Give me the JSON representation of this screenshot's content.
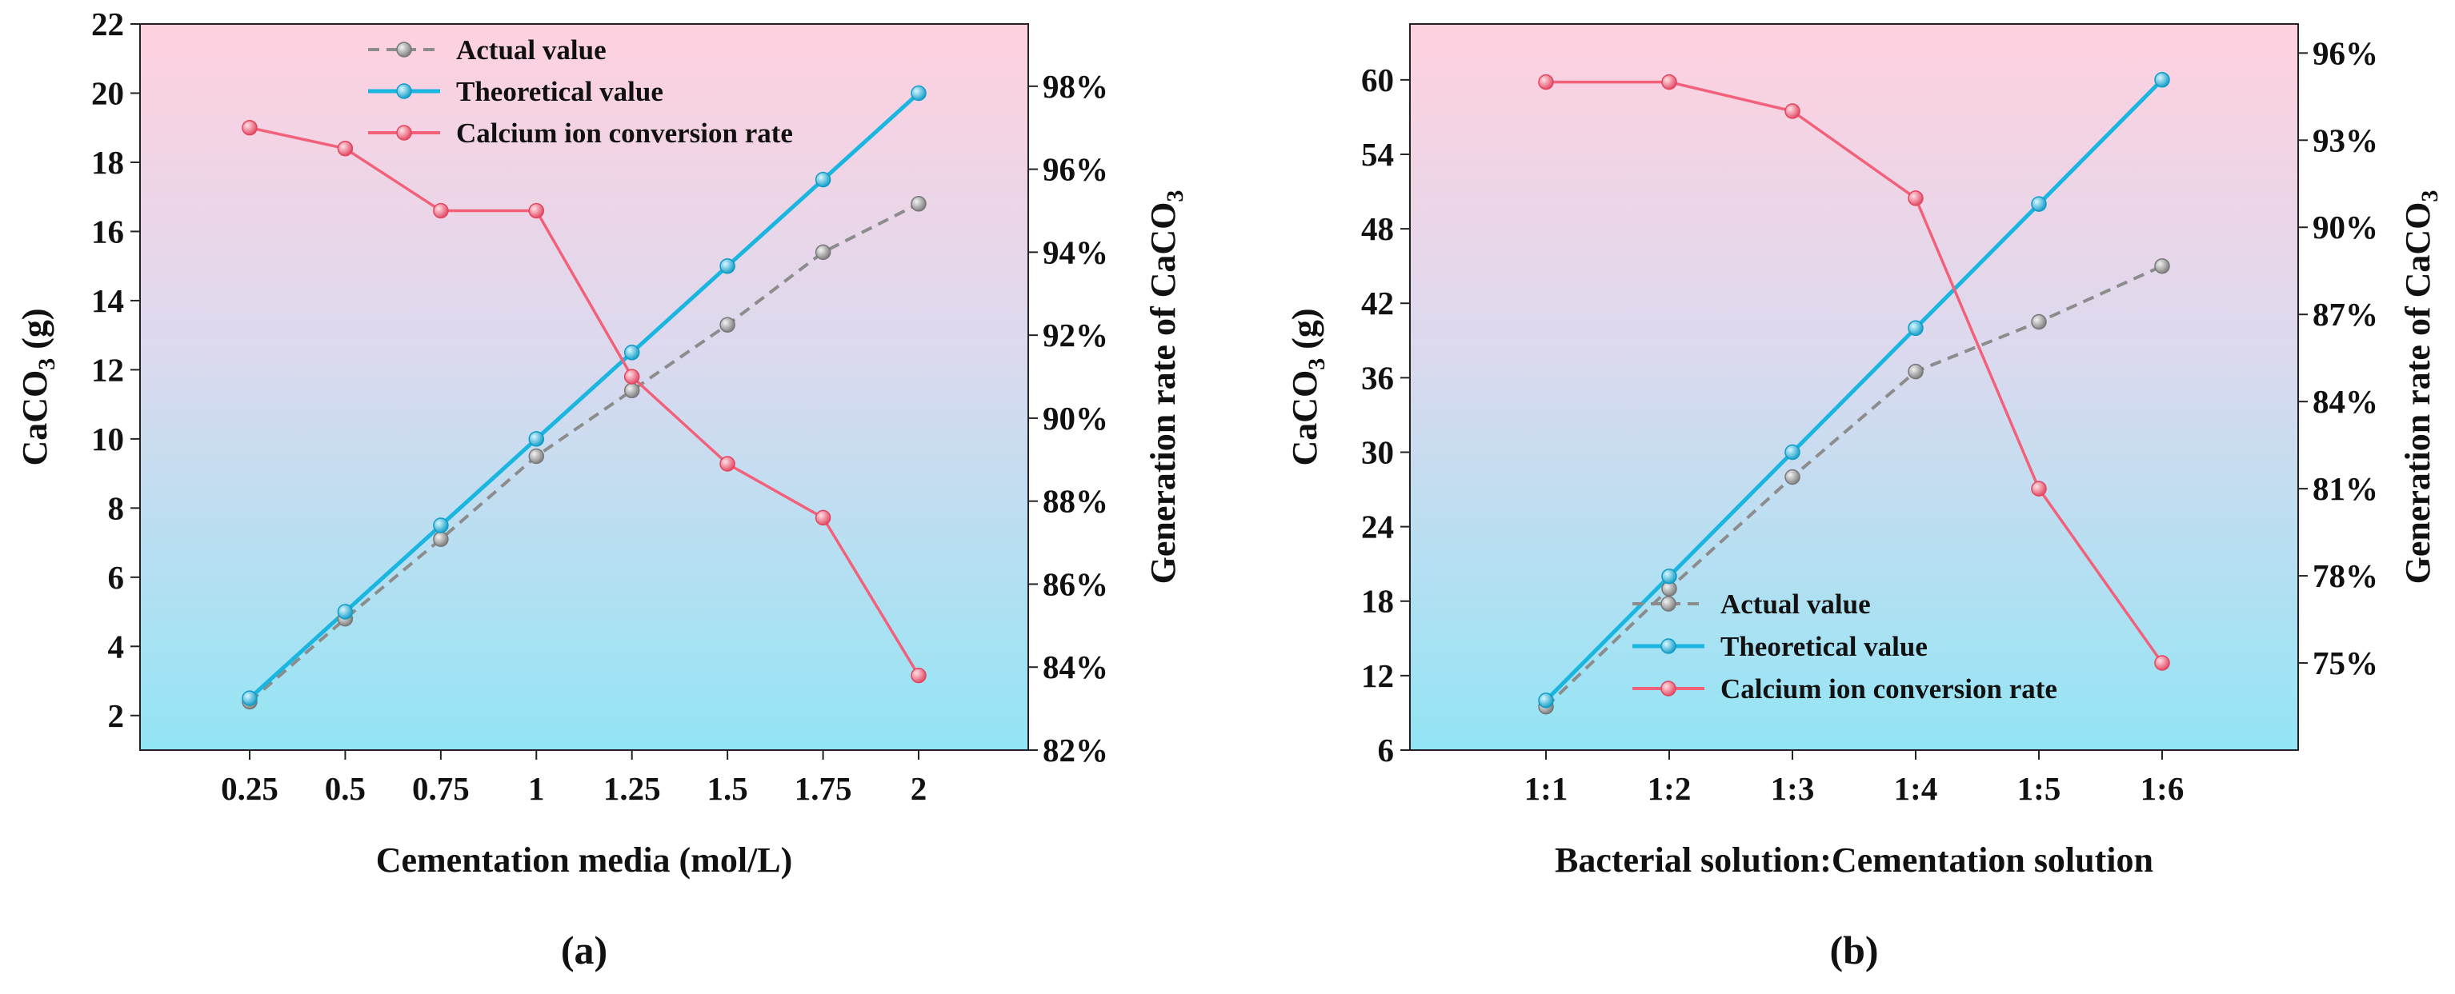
{
  "chart_data": [
    {
      "panel_label": "(a)",
      "type": "line",
      "categories": [
        "0.25",
        "0.5",
        "0.75",
        "1",
        "1.25",
        "1.5",
        "1.75",
        "2"
      ],
      "xlabel": "Cementation media (mol/L)",
      "ylabel_main": "CaCO",
      "ylabel_sub": "3",
      "ylabel_tail": " (g)",
      "y2label_main": "Generation rate of CaCO",
      "y2label_sub": "3",
      "ylim": [
        1,
        22
      ],
      "yticks": [
        2,
        4,
        6,
        8,
        10,
        12,
        14,
        16,
        18,
        20,
        22
      ],
      "y2lim": [
        82,
        99.5
      ],
      "y2ticks": [
        82,
        84,
        86,
        88,
        90,
        92,
        94,
        96,
        98
      ],
      "y2tick_labels": [
        "82%",
        "84%",
        "86%",
        "88%",
        "90%",
        "92%",
        "94%",
        "96%",
        "98%"
      ],
      "legend_position": "top-center",
      "series": [
        {
          "name": "Actual value",
          "axis": "left",
          "color": "#8c8c8c",
          "style": "dashed",
          "values": [
            2.4,
            4.8,
            7.1,
            9.5,
            11.4,
            13.3,
            15.4,
            16.8
          ]
        },
        {
          "name": "Theoretical value",
          "axis": "left",
          "color": "#1ab6e0",
          "style": "solid",
          "values": [
            2.5,
            5.0,
            7.5,
            10.0,
            12.5,
            15.0,
            17.5,
            20.0
          ]
        },
        {
          "name": "Calcium ion conversion rate",
          "axis": "right",
          "color": "#f2607a",
          "style": "solid",
          "values": [
            97.0,
            96.5,
            95.0,
            95.0,
            91.0,
            88.9,
            87.6,
            83.8
          ]
        }
      ]
    },
    {
      "panel_label": "(b)",
      "type": "line",
      "categories": [
        "1:1",
        "1:2",
        "1:3",
        "1:4",
        "1:5",
        "1:6"
      ],
      "xlabel": "Bacterial solution:Cementation solution",
      "ylabel_main": "CaCO",
      "ylabel_sub": "3",
      "ylabel_tail": " (g)",
      "y2label_main": "Generation rate of CaCO",
      "y2label_sub": "3",
      "ylim": [
        6,
        64.5
      ],
      "yticks": [
        6,
        12,
        18,
        24,
        30,
        36,
        42,
        48,
        54,
        60
      ],
      "y2lim": [
        72,
        97
      ],
      "y2ticks": [
        75,
        78,
        81,
        84,
        87,
        90,
        93,
        96
      ],
      "y2tick_labels": [
        "75%",
        "78%",
        "81%",
        "84%",
        "87%",
        "90%",
        "93%",
        "96%"
      ],
      "legend_position": "bottom-center",
      "series": [
        {
          "name": "Actual value",
          "axis": "left",
          "color": "#8c8c8c",
          "style": "dashed",
          "values": [
            9.5,
            19.0,
            28.0,
            36.5,
            40.5,
            45.0
          ]
        },
        {
          "name": "Theoretical value",
          "axis": "left",
          "color": "#1ab6e0",
          "style": "solid",
          "values": [
            10,
            20,
            30,
            40,
            50,
            60
          ]
        },
        {
          "name": "Calcium ion conversion rate",
          "axis": "right",
          "color": "#f2607a",
          "style": "solid",
          "values": [
            95.0,
            95.0,
            94.0,
            91.0,
            81.0,
            75.0
          ]
        }
      ]
    }
  ]
}
